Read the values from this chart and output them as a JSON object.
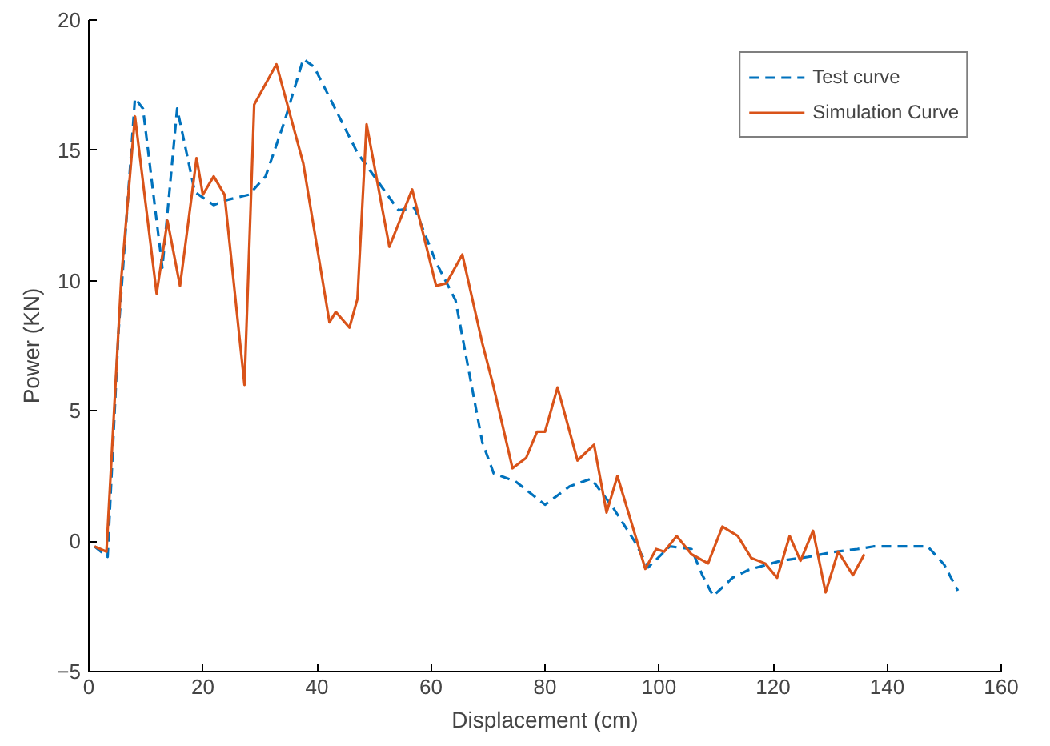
{
  "chart_data": {
    "type": "line",
    "xlabel": "Displacement (cm)",
    "ylabel": "Power (KN)",
    "xlim": [
      0,
      160
    ],
    "ylim": [
      -5,
      20
    ],
    "xticks": [
      0,
      20,
      40,
      60,
      80,
      100,
      120,
      140,
      160
    ],
    "yticks": [
      -5,
      0,
      5,
      10,
      15,
      20
    ],
    "grid": false,
    "legend": "top right",
    "marker": "none",
    "series": [
      {
        "name": "Test curve",
        "color": "#0072bd",
        "line_style": "dashed",
        "x": [
          1,
          3.3,
          5.2,
          8.1,
          9.5,
          12.9,
          15.5,
          18.6,
          21.9,
          24.3,
          28.1,
          31,
          34.3,
          37.6,
          39.5,
          47.1,
          54.3,
          57.1,
          60.9,
          64.3,
          67.1,
          69,
          71,
          74.8,
          80,
          84.3,
          88.1,
          91.9,
          95.7,
          98.1,
          101.9,
          105.7,
          107.6,
          109.5,
          112.9,
          115.7,
          121.4,
          126.2,
          131,
          134.8,
          137.6,
          147.1,
          150,
          152.4
        ],
        "values": [
          -0.2,
          -0.6,
          8,
          17,
          16.6,
          10.5,
          16.6,
          13.4,
          12.9,
          13.1,
          13.3,
          14,
          16.1,
          18.5,
          18.2,
          14.9,
          12.7,
          12.8,
          10.7,
          9.25,
          6,
          3.8,
          2.6,
          2.3,
          1.4,
          2.1,
          2.4,
          1.3,
          0,
          -1,
          -0.2,
          -0.3,
          -1.3,
          -2.1,
          -1.4,
          -1.1,
          -0.75,
          -0.6,
          -0.4,
          -0.3,
          -0.2,
          -0.2,
          -0.9,
          -1.9
        ]
      },
      {
        "name": "Simulation Curve",
        "color": "#d95319",
        "line_style": "solid",
        "x": [
          1,
          3.1,
          5.7,
          8.1,
          11.9,
          13.8,
          16,
          18.9,
          20,
          21.9,
          23.8,
          27.3,
          29,
          32.9,
          37.6,
          42.2,
          43.3,
          45.7,
          47.1,
          48.7,
          52.7,
          56.7,
          60.9,
          62.7,
          65.5,
          69,
          70.9,
          74.3,
          76.7,
          78.6,
          80,
          82.2,
          85.7,
          88.6,
          90.8,
          92.7,
          97.6,
          99.5,
          100.9,
          103.1,
          105.7,
          108.6,
          111.1,
          113.8,
          116.2,
          118.6,
          120.7,
          122.9,
          124.8,
          127,
          129.2,
          131.4,
          134,
          136
        ],
        "values": [
          -0.2,
          -0.4,
          10.1,
          16.3,
          9.5,
          12.3,
          9.8,
          14.7,
          13.3,
          14,
          13.3,
          6,
          16.75,
          18.3,
          14.5,
          8.4,
          8.8,
          8.2,
          9.3,
          16,
          11.3,
          13.5,
          9.8,
          9.9,
          11,
          7.6,
          6,
          2.8,
          3.2,
          4.2,
          4.2,
          5.9,
          3.1,
          3.7,
          1.1,
          2.5,
          -1.06,
          -0.3,
          -0.4,
          0.2,
          -0.5,
          -0.85,
          0.56,
          0.2,
          -0.65,
          -0.85,
          -1.4,
          0.2,
          -0.75,
          0.4,
          -1.96,
          -0.4,
          -1.3,
          -0.5
        ]
      }
    ]
  }
}
